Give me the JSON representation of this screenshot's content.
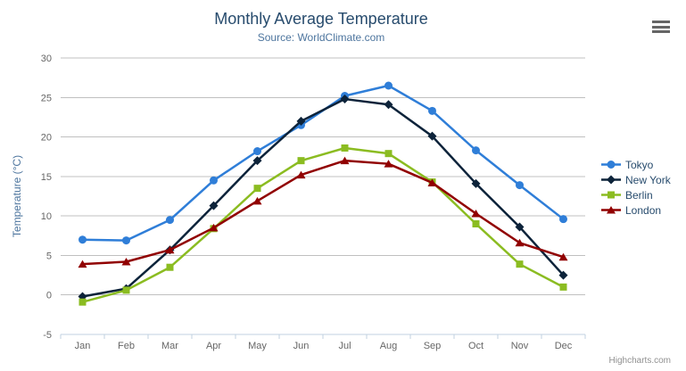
{
  "chart_data": {
    "type": "line",
    "title": "Monthly Average Temperature",
    "subtitle": "Source: WorldClimate.com",
    "categories": [
      "Jan",
      "Feb",
      "Mar",
      "Apr",
      "May",
      "Jun",
      "Jul",
      "Aug",
      "Sep",
      "Oct",
      "Nov",
      "Dec"
    ],
    "xlabel": "",
    "ylabel": "Temperature (°C)",
    "ylim": [
      -5,
      30
    ],
    "ytick_interval": 5,
    "grid": true,
    "legend_position": "right-middle",
    "series": [
      {
        "name": "Tokyo",
        "color": "#2f7ed8",
        "marker": "circle",
        "values": [
          7.0,
          6.9,
          9.5,
          14.5,
          18.2,
          21.5,
          25.2,
          26.5,
          23.3,
          18.3,
          13.9,
          9.6
        ]
      },
      {
        "name": "New York",
        "color": "#0d233a",
        "marker": "diamond",
        "values": [
          -0.2,
          0.8,
          5.7,
          11.3,
          17.0,
          22.0,
          24.8,
          24.1,
          20.1,
          14.1,
          8.6,
          2.5
        ]
      },
      {
        "name": "Berlin",
        "color": "#8bbc21",
        "marker": "square",
        "values": [
          -0.9,
          0.6,
          3.5,
          8.4,
          13.5,
          17.0,
          18.6,
          17.9,
          14.3,
          9.0,
          3.9,
          1.0
        ]
      },
      {
        "name": "London",
        "color": "#910000",
        "marker": "triangle",
        "values": [
          3.9,
          4.2,
          5.7,
          8.5,
          11.9,
          15.2,
          17.0,
          16.6,
          14.2,
          10.3,
          6.6,
          4.8
        ]
      }
    ]
  },
  "credits": {
    "label": "Highcharts.com"
  },
  "export_menu": {
    "icon": "hamburger-icon"
  },
  "theme": {
    "title_color": "#274b6d",
    "subtitle_color": "#4d759e",
    "axis_title_color": "#4d759e",
    "tick_label_color": "#666666",
    "grid_color": "#c0c0c0",
    "axis_line_color": "#c0d0e0",
    "legend_text_color": "#274b6d",
    "credits_color": "#909090",
    "export_icon_color": "#666666",
    "background_color": "#ffffff"
  }
}
